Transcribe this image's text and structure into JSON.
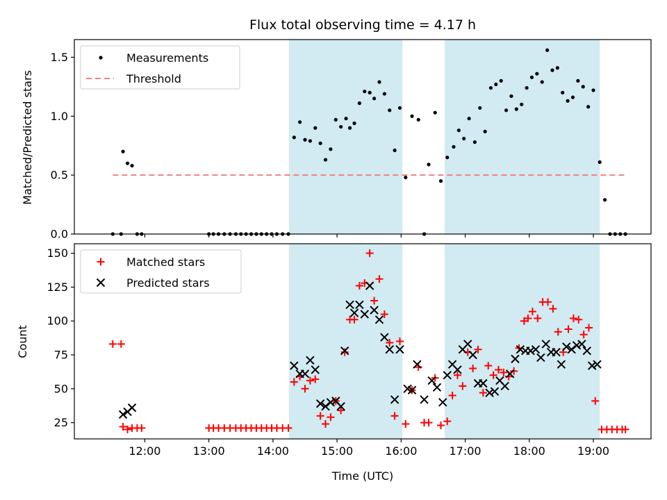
{
  "chart_data": [
    {
      "type": "scatter",
      "title": "Flux total observing time = 4.17 h",
      "ylabel": "Matched/Predicted stars",
      "xlim": [
        10.9,
        19.9
      ],
      "ylim": [
        0,
        1.65
      ],
      "y_ticks": [
        0.0,
        0.5,
        1.0,
        1.5
      ],
      "y_tick_labels": [
        "0.0",
        "0.5",
        "1.0",
        "1.5"
      ],
      "legend_position": "upper-left",
      "shaded_spans": [
        [
          14.25,
          16.02
        ],
        [
          16.68,
          19.1
        ]
      ],
      "shade_color": "#add8e6",
      "series": [
        {
          "name": "Measurements",
          "color": "#000000",
          "marker": "dot",
          "points": [
            [
              11.5,
              0
            ],
            [
              11.63,
              0
            ],
            [
              11.66,
              0.7
            ],
            [
              11.73,
              0.6
            ],
            [
              11.8,
              0.58
            ],
            [
              11.88,
              0
            ],
            [
              11.95,
              0
            ],
            [
              13.0,
              0
            ],
            [
              13.07,
              0
            ],
            [
              13.15,
              0
            ],
            [
              13.24,
              0
            ],
            [
              13.33,
              0
            ],
            [
              13.42,
              0
            ],
            [
              13.5,
              0
            ],
            [
              13.58,
              0
            ],
            [
              13.66,
              0
            ],
            [
              13.74,
              0
            ],
            [
              13.82,
              0
            ],
            [
              13.9,
              0
            ],
            [
              13.98,
              0
            ],
            [
              14.06,
              0
            ],
            [
              14.15,
              0
            ],
            [
              14.24,
              0
            ],
            [
              14.33,
              0.82
            ],
            [
              14.42,
              0.95
            ],
            [
              14.5,
              0.8
            ],
            [
              14.58,
              0.79
            ],
            [
              14.66,
              0.9
            ],
            [
              14.74,
              0.77
            ],
            [
              14.82,
              0.63
            ],
            [
              14.9,
              0.72
            ],
            [
              14.98,
              0.97
            ],
            [
              15.06,
              0.91
            ],
            [
              15.14,
              0.98
            ],
            [
              15.2,
              0.9
            ],
            [
              15.27,
              0.94
            ],
            [
              15.35,
              1.11
            ],
            [
              15.43,
              1.21
            ],
            [
              15.51,
              1.2
            ],
            [
              15.58,
              1.15
            ],
            [
              15.66,
              1.29
            ],
            [
              15.74,
              1.19
            ],
            [
              15.82,
              1.05
            ],
            [
              15.9,
              0.71
            ],
            [
              15.98,
              1.07
            ],
            [
              16.07,
              0.48
            ],
            [
              16.17,
              1.0
            ],
            [
              16.27,
              0.97
            ],
            [
              16.36,
              0
            ],
            [
              16.43,
              0.59
            ],
            [
              16.53,
              1.03
            ],
            [
              16.62,
              0.45
            ],
            [
              16.72,
              0.65
            ],
            [
              16.82,
              0.74
            ],
            [
              16.9,
              0.88
            ],
            [
              16.98,
              0.81
            ],
            [
              17.06,
              0.98
            ],
            [
              17.15,
              0.78
            ],
            [
              17.23,
              1.07
            ],
            [
              17.31,
              0.87
            ],
            [
              17.4,
              1.24
            ],
            [
              17.48,
              1.27
            ],
            [
              17.56,
              1.3
            ],
            [
              17.64,
              1.05
            ],
            [
              17.72,
              1.17
            ],
            [
              17.8,
              1.06
            ],
            [
              17.88,
              1.1
            ],
            [
              17.96,
              1.24
            ],
            [
              18.04,
              1.33
            ],
            [
              18.12,
              1.36
            ],
            [
              18.2,
              1.29
            ],
            [
              18.28,
              1.56
            ],
            [
              18.36,
              1.39
            ],
            [
              18.44,
              1.41
            ],
            [
              18.52,
              1.2
            ],
            [
              18.6,
              1.13
            ],
            [
              18.68,
              1.16
            ],
            [
              18.76,
              1.3
            ],
            [
              18.84,
              1.25
            ],
            [
              18.92,
              1.08
            ],
            [
              19.0,
              1.22
            ],
            [
              19.1,
              0.61
            ],
            [
              19.18,
              0.29
            ],
            [
              19.26,
              0
            ],
            [
              19.34,
              0
            ],
            [
              19.42,
              0
            ],
            [
              19.5,
              0
            ]
          ]
        },
        {
          "name": "Threshold",
          "color": "#f08080",
          "style": "dashed",
          "points": [
            [
              11.5,
              0.5
            ],
            [
              19.5,
              0.5
            ]
          ]
        }
      ]
    },
    {
      "type": "scatter",
      "xlabel": "Time (UTC)",
      "ylabel": "Count",
      "xlim": [
        10.9,
        19.9
      ],
      "ylim": [
        13,
        157
      ],
      "x_ticks": [
        12,
        13,
        14,
        15,
        16,
        17,
        18,
        19
      ],
      "x_tick_labels": [
        "12:00",
        "13:00",
        "14:00",
        "15:00",
        "16:00",
        "17:00",
        "18:00",
        "19:00"
      ],
      "y_ticks": [
        25,
        50,
        75,
        100,
        125,
        150
      ],
      "y_tick_labels": [
        "25",
        "50",
        "75",
        "100",
        "125",
        "150"
      ],
      "legend_position": "upper-left",
      "shaded_spans": [
        [
          14.25,
          16.02
        ],
        [
          16.68,
          19.1
        ]
      ],
      "shade_color": "#add8e6",
      "series": [
        {
          "name": "Matched stars",
          "color": "#ff0000",
          "marker": "plus",
          "points": [
            [
              11.5,
              83
            ],
            [
              11.63,
              83
            ],
            [
              11.66,
              22
            ],
            [
              11.73,
              20
            ],
            [
              11.8,
              21
            ],
            [
              11.88,
              21
            ],
            [
              11.95,
              21
            ],
            [
              13.0,
              21
            ],
            [
              13.07,
              21
            ],
            [
              13.15,
              21
            ],
            [
              13.24,
              21
            ],
            [
              13.33,
              21
            ],
            [
              13.42,
              21
            ],
            [
              13.5,
              21
            ],
            [
              13.58,
              21
            ],
            [
              13.66,
              21
            ],
            [
              13.74,
              21
            ],
            [
              13.82,
              21
            ],
            [
              13.9,
              21
            ],
            [
              13.98,
              21
            ],
            [
              14.06,
              21
            ],
            [
              14.15,
              21
            ],
            [
              14.24,
              21
            ],
            [
              14.33,
              55
            ],
            [
              14.42,
              59
            ],
            [
              14.5,
              50
            ],
            [
              14.58,
              56
            ],
            [
              14.66,
              57
            ],
            [
              14.74,
              30
            ],
            [
              14.82,
              24
            ],
            [
              14.9,
              29
            ],
            [
              14.98,
              41
            ],
            [
              15.06,
              34
            ],
            [
              15.12,
              77
            ],
            [
              15.2,
              101
            ],
            [
              15.27,
              101
            ],
            [
              15.35,
              126
            ],
            [
              15.43,
              128
            ],
            [
              15.51,
              150
            ],
            [
              15.58,
              115
            ],
            [
              15.66,
              131
            ],
            [
              15.74,
              105
            ],
            [
              15.82,
              84
            ],
            [
              15.9,
              30
            ],
            [
              15.98,
              85
            ],
            [
              16.07,
              24
            ],
            [
              16.17,
              49
            ],
            [
              16.27,
              66
            ],
            [
              16.36,
              25
            ],
            [
              16.43,
              25
            ],
            [
              16.53,
              58
            ],
            [
              16.62,
              23
            ],
            [
              16.72,
              26
            ],
            [
              16.8,
              45
            ],
            [
              16.88,
              60
            ],
            [
              16.96,
              52
            ],
            [
              17.04,
              77
            ],
            [
              17.12,
              65
            ],
            [
              17.2,
              79
            ],
            [
              17.28,
              47
            ],
            [
              17.36,
              67
            ],
            [
              17.44,
              60
            ],
            [
              17.52,
              64
            ],
            [
              17.6,
              62
            ],
            [
              17.68,
              59
            ],
            [
              17.76,
              63
            ],
            [
              17.84,
              80
            ],
            [
              17.92,
              100
            ],
            [
              17.98,
              102
            ],
            [
              18.05,
              107
            ],
            [
              18.13,
              102
            ],
            [
              18.21,
              114
            ],
            [
              18.29,
              114
            ],
            [
              18.37,
              109
            ],
            [
              18.45,
              92
            ],
            [
              18.53,
              77
            ],
            [
              18.61,
              94
            ],
            [
              18.69,
              102
            ],
            [
              18.77,
              101
            ],
            [
              18.85,
              90
            ],
            [
              18.93,
              95
            ],
            [
              19.03,
              41
            ],
            [
              19.13,
              20
            ],
            [
              19.21,
              20
            ],
            [
              19.29,
              20
            ],
            [
              19.37,
              20
            ],
            [
              19.45,
              20
            ],
            [
              19.5,
              20
            ]
          ]
        },
        {
          "name": "Predicted stars",
          "color": "#000000",
          "marker": "x",
          "points": [
            [
              11.66,
              31
            ],
            [
              11.73,
              33
            ],
            [
              11.8,
              36
            ],
            [
              14.33,
              67
            ],
            [
              14.42,
              61
            ],
            [
              14.5,
              61
            ],
            [
              14.58,
              71
            ],
            [
              14.66,
              64
            ],
            [
              14.74,
              39
            ],
            [
              14.82,
              37
            ],
            [
              14.9,
              40
            ],
            [
              14.98,
              41
            ],
            [
              15.06,
              37
            ],
            [
              15.12,
              78
            ],
            [
              15.2,
              112
            ],
            [
              15.27,
              106
            ],
            [
              15.35,
              112
            ],
            [
              15.43,
              105
            ],
            [
              15.51,
              126
            ],
            [
              15.58,
              108
            ],
            [
              15.66,
              101
            ],
            [
              15.74,
              88
            ],
            [
              15.82,
              79
            ],
            [
              15.9,
              42
            ],
            [
              15.98,
              79
            ],
            [
              16.1,
              50
            ],
            [
              16.17,
              49
            ],
            [
              16.25,
              68
            ],
            [
              16.36,
              42
            ],
            [
              16.48,
              56
            ],
            [
              16.56,
              51
            ],
            [
              16.65,
              40
            ],
            [
              16.72,
              60
            ],
            [
              16.8,
              68
            ],
            [
              16.88,
              64
            ],
            [
              16.96,
              79
            ],
            [
              17.04,
              83
            ],
            [
              17.12,
              75
            ],
            [
              17.2,
              54
            ],
            [
              17.28,
              54
            ],
            [
              17.38,
              47
            ],
            [
              17.46,
              48
            ],
            [
              17.54,
              56
            ],
            [
              17.62,
              52
            ],
            [
              17.7,
              61
            ],
            [
              17.78,
              72
            ],
            [
              17.86,
              79
            ],
            [
              17.94,
              78
            ],
            [
              18.02,
              78
            ],
            [
              18.1,
              79
            ],
            [
              18.18,
              73
            ],
            [
              18.26,
              83
            ],
            [
              18.34,
              77
            ],
            [
              18.42,
              77
            ],
            [
              18.5,
              68
            ],
            [
              18.58,
              81
            ],
            [
              18.66,
              79
            ],
            [
              18.74,
              82
            ],
            [
              18.82,
              83
            ],
            [
              18.9,
              78
            ],
            [
              18.98,
              67
            ],
            [
              19.06,
              68
            ]
          ]
        }
      ]
    }
  ]
}
